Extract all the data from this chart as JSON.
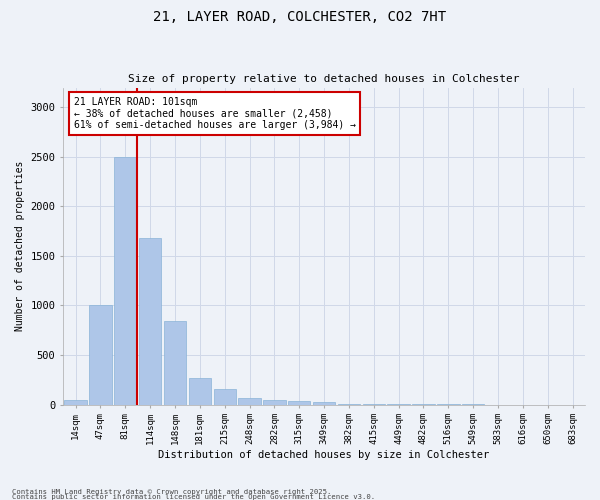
{
  "title1": "21, LAYER ROAD, COLCHESTER, CO2 7HT",
  "title2": "Size of property relative to detached houses in Colchester",
  "xlabel": "Distribution of detached houses by size in Colchester",
  "ylabel": "Number of detached properties",
  "footnote1": "Contains HM Land Registry data © Crown copyright and database right 2025.",
  "footnote2": "Contains public sector information licensed under the Open Government Licence v3.0.",
  "bar_labels": [
    "14sqm",
    "47sqm",
    "81sqm",
    "114sqm",
    "148sqm",
    "181sqm",
    "215sqm",
    "248sqm",
    "282sqm",
    "315sqm",
    "349sqm",
    "382sqm",
    "415sqm",
    "449sqm",
    "482sqm",
    "516sqm",
    "549sqm",
    "583sqm",
    "616sqm",
    "650sqm",
    "683sqm"
  ],
  "bar_values": [
    50,
    1000,
    2500,
    1680,
    840,
    270,
    160,
    70,
    50,
    40,
    25,
    10,
    5,
    3,
    2,
    1,
    1,
    0,
    0,
    0,
    0
  ],
  "bar_color": "#aec6e8",
  "bar_edge_color": "#8ab4d8",
  "grid_color": "#d0d8e8",
  "background_color": "#eef2f8",
  "vline_x_index": 2.48,
  "vline_color": "#cc0000",
  "annotation_text": "21 LAYER ROAD: 101sqm\n← 38% of detached houses are smaller (2,458)\n61% of semi-detached houses are larger (3,984) →",
  "annotation_box_color": "#ffffff",
  "annotation_box_edge": "#cc0000",
  "ylim": [
    0,
    3200
  ],
  "yticks": [
    0,
    500,
    1000,
    1500,
    2000,
    2500,
    3000
  ]
}
